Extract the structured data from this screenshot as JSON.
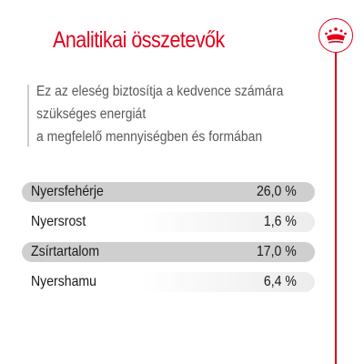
{
  "title": "Analitikai összetevők",
  "intro": {
    "lines": [
      "Ez az eleség biztosítja a kedvence számára",
      "szükséges energiát",
      "a megfelelő mennyiségben és formában"
    ]
  },
  "nutrients": [
    {
      "label": "Nyersfehérje",
      "value": "26,0 %"
    },
    {
      "label": "Nyersrost",
      "value": "1,6 %"
    },
    {
      "label": "Zsírtartalom",
      "value": "17,0 %"
    },
    {
      "label": "Nyershamu",
      "value": "6,4 %"
    }
  ],
  "logo_icon": "crown-icon",
  "colors": {
    "accent": "#e2001a",
    "shaded_row": "#cfcfcf",
    "intro_text": "#595959"
  }
}
